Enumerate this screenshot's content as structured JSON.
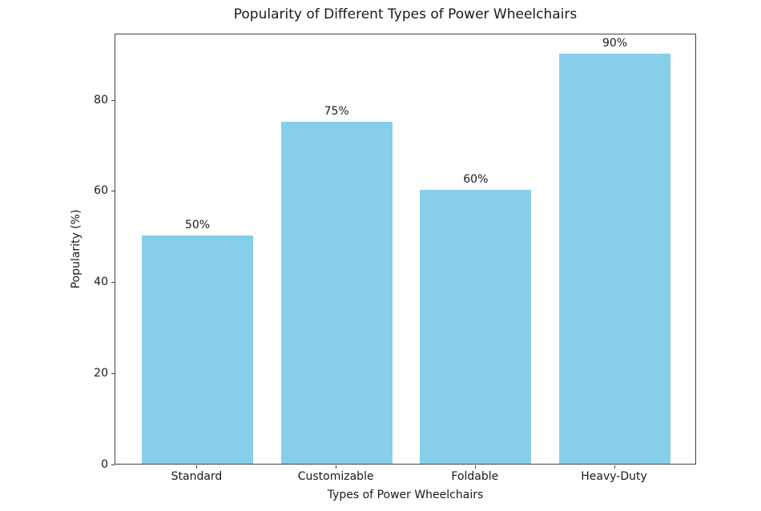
{
  "chart_data": {
    "type": "bar",
    "title": "Popularity of Different Types of Power Wheelchairs",
    "xlabel": "Types of Power Wheelchairs",
    "ylabel": "Popularity (%)",
    "categories": [
      "Standard",
      "Customizable",
      "Foldable",
      "Heavy-Duty"
    ],
    "values": [
      50,
      75,
      60,
      90
    ],
    "bar_labels": [
      "50%",
      "75%",
      "60%",
      "90%"
    ],
    "yticks": [
      0,
      20,
      40,
      60,
      80
    ],
    "ylim": [
      0,
      94.5
    ],
    "bar_color": "#87CEEB",
    "spine_color": "#444444",
    "text_color": "#1a1a1a",
    "background_color": "#ffffff",
    "grid": false,
    "legend": null,
    "bar_width_fraction": 0.8
  }
}
